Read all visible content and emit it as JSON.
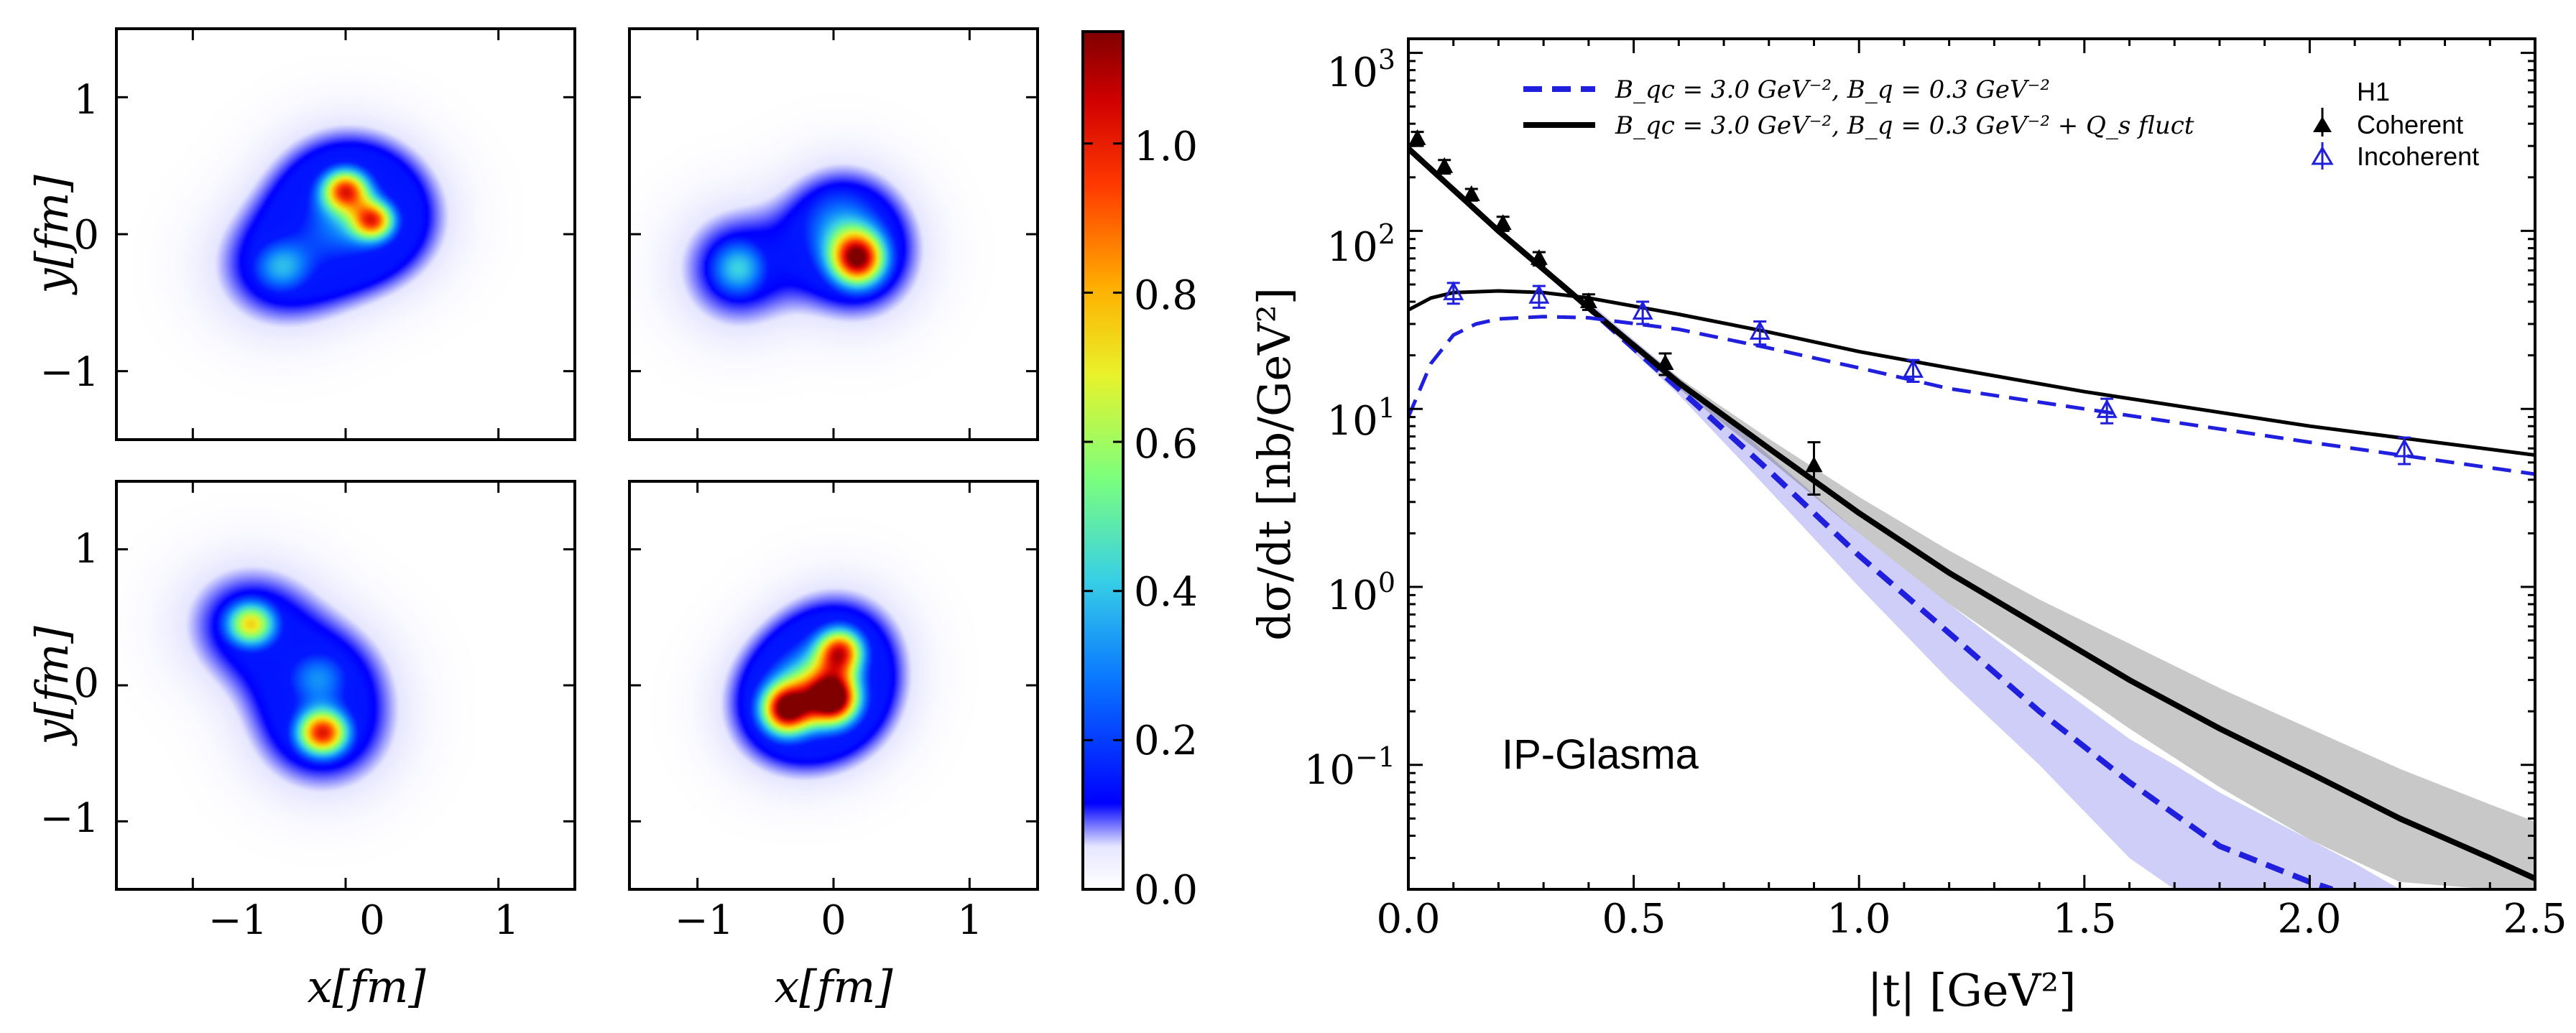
{
  "density_panels": {
    "x_ticks": [
      "−1",
      "0",
      "1"
    ],
    "y_ticks": [
      "1",
      "0",
      "−1"
    ],
    "xlabel": "x[fm]",
    "ylabel": "y[fm]",
    "xlim": [
      -1.5,
      1.5
    ],
    "ylim": [
      -1.5,
      1.5
    ],
    "panels": [
      {
        "blobs": [
          {
            "x": 0.0,
            "y": 0.32,
            "a": 0.85,
            "s": 0.11
          },
          {
            "x": 0.18,
            "y": 0.1,
            "a": 0.8,
            "s": 0.1
          },
          {
            "x": -0.42,
            "y": -0.24,
            "a": 0.35,
            "s": 0.14
          },
          {
            "x": -0.05,
            "y": 0.05,
            "a": 0.25,
            "s": 0.2
          }
        ]
      },
      {
        "blobs": [
          {
            "x": 0.18,
            "y": -0.18,
            "a": 1.0,
            "s": 0.14
          },
          {
            "x": 0.05,
            "y": 0.05,
            "a": 0.3,
            "s": 0.22
          },
          {
            "x": -0.7,
            "y": -0.25,
            "a": 0.4,
            "s": 0.15
          }
        ]
      },
      {
        "blobs": [
          {
            "x": -0.62,
            "y": 0.45,
            "a": 0.7,
            "s": 0.12
          },
          {
            "x": -0.15,
            "y": -0.35,
            "a": 0.95,
            "s": 0.12
          },
          {
            "x": -0.18,
            "y": 0.05,
            "a": 0.3,
            "s": 0.15
          }
        ]
      },
      {
        "blobs": [
          {
            "x": -0.35,
            "y": -0.18,
            "a": 1.0,
            "s": 0.13
          },
          {
            "x": 0.0,
            "y": -0.1,
            "a": 1.0,
            "s": 0.13
          },
          {
            "x": 0.05,
            "y": 0.25,
            "a": 0.85,
            "s": 0.12
          },
          {
            "x": -0.15,
            "y": 0.0,
            "a": 0.5,
            "s": 0.2
          }
        ]
      }
    ]
  },
  "colorbar": {
    "ticks": [
      "0.0",
      "0.2",
      "0.4",
      "0.6",
      "0.8",
      "1.0"
    ],
    "values": [
      0.0,
      0.2,
      0.4,
      0.6,
      0.8,
      1.0
    ],
    "range": [
      0.0,
      1.15
    ]
  },
  "chart_data": {
    "type": "line",
    "xlabel": "|t| [GeV²]",
    "ylabel": "dσ/dt [nb/GeV²]",
    "xlim": [
      0.0,
      2.5
    ],
    "ylim": [
      0.02,
      1200
    ],
    "y_scale": "log",
    "x_ticks": [
      "0.0",
      "0.5",
      "1.0",
      "1.5",
      "2.0",
      "2.5"
    ],
    "y_ticks": [
      {
        "value": 1000,
        "base": "10",
        "exp": "3"
      },
      {
        "value": 100,
        "base": "10",
        "exp": "2"
      },
      {
        "value": 10,
        "base": "10",
        "exp": "1"
      },
      {
        "value": 1,
        "base": "10",
        "exp": "0"
      },
      {
        "value": 0.1,
        "base": "10",
        "exp": "−1"
      }
    ],
    "annotation": "IP-Glasma",
    "legend_left": [
      {
        "label": "B_qc = 3.0 GeV⁻², B_q = 0.3 GeV⁻²",
        "color": "#1f1fdd",
        "style": "dashed"
      },
      {
        "label": "B_qc = 3.0 GeV⁻², B_q = 0.3 GeV⁻² + Q_s fluct",
        "color": "#000000",
        "style": "solid"
      }
    ],
    "legend_right": {
      "title": "H1",
      "items": [
        {
          "label": "Coherent",
          "marker": "filled-triangle",
          "color": "#000000"
        },
        {
          "label": "Incoherent",
          "marker": "open-triangle",
          "color": "#1f1fdd"
        }
      ]
    },
    "series": [
      {
        "name": "B_qc = 3.0 GeV⁻², B_q = 0.3 GeV⁻² (coherent)",
        "color": "#1f1fdd",
        "style": "dashed",
        "width": 8,
        "x": [
          0.0,
          0.2,
          0.4,
          0.6,
          0.8,
          1.0,
          1.2,
          1.4,
          1.6,
          1.8,
          2.0,
          2.05
        ],
        "y": [
          290,
          100,
          37,
          13,
          4.5,
          1.5,
          0.55,
          0.2,
          0.08,
          0.035,
          0.022,
          0.02
        ]
      },
      {
        "name": "B_qc = 3.0 GeV⁻², B_q = 0.3 GeV⁻² + Q_s fluct (coherent)",
        "color": "#000000",
        "style": "solid",
        "width": 8,
        "x": [
          0.0,
          0.2,
          0.4,
          0.6,
          0.8,
          1.0,
          1.2,
          1.4,
          1.6,
          1.8,
          2.0,
          2.2,
          2.4,
          2.5
        ],
        "y": [
          290,
          100,
          37,
          14,
          6,
          2.6,
          1.2,
          0.6,
          0.3,
          0.16,
          0.09,
          0.05,
          0.03,
          0.023
        ]
      },
      {
        "name": "B_qc = 3.0 GeV⁻², B_q = 0.3 GeV⁻² (incoherent)",
        "color": "#1f1fdd",
        "style": "dashed",
        "width": 5,
        "x": [
          0.0,
          0.05,
          0.1,
          0.15,
          0.2,
          0.3,
          0.4,
          0.6,
          0.8,
          1.0,
          1.2,
          1.5,
          2.0,
          2.5
        ],
        "y": [
          9,
          18,
          26,
          30,
          32,
          33,
          32.5,
          28,
          22,
          17,
          13,
          10,
          6.5,
          4.3
        ]
      },
      {
        "name": "B_qc = 3.0 GeV⁻², B_q = 0.3 GeV⁻² + Q_s fluct (incoherent)",
        "color": "#000000",
        "style": "solid",
        "width": 5,
        "x": [
          0.0,
          0.05,
          0.1,
          0.2,
          0.3,
          0.4,
          0.6,
          0.8,
          1.0,
          1.2,
          1.5,
          2.0,
          2.5
        ],
        "y": [
          36,
          42,
          45,
          46,
          45,
          42,
          34,
          27,
          21,
          17,
          12.5,
          8,
          5.5
        ]
      }
    ],
    "bands": [
      {
        "color": "#2222dd",
        "opacity": 0.22,
        "x": [
          0.4,
          0.6,
          0.8,
          1.0,
          1.2,
          1.4,
          1.6,
          1.7,
          1.8,
          2.0,
          2.1,
          2.2
        ],
        "upper": [
          40,
          15,
          5.5,
          2.0,
          0.8,
          0.33,
          0.14,
          0.1,
          0.07,
          0.038,
          0.028,
          0.02
        ],
        "lower": [
          36,
          12,
          3.5,
          1.0,
          0.3,
          0.1,
          0.03,
          0.02,
          0.02,
          0.02,
          0.02,
          0.02
        ]
      },
      {
        "color": "#555555",
        "opacity": 0.32,
        "x": [
          0.5,
          0.6,
          0.8,
          1.0,
          1.2,
          1.4,
          1.6,
          1.8,
          2.0,
          2.2,
          2.4,
          2.5
        ],
        "upper": [
          24,
          15,
          6.8,
          3.2,
          1.6,
          0.85,
          0.48,
          0.27,
          0.16,
          0.095,
          0.06,
          0.048
        ],
        "lower": [
          22,
          13,
          5.2,
          2.0,
          0.8,
          0.36,
          0.16,
          0.075,
          0.038,
          0.022,
          0.02,
          0.02
        ]
      }
    ],
    "coherent_data": {
      "x": [
        0.02,
        0.08,
        0.14,
        0.21,
        0.29,
        0.4,
        0.57,
        0.9
      ],
      "y": [
        330,
        230,
        160,
        110,
        70,
        40,
        18,
        4.8
      ],
      "ylo": [
        300,
        210,
        148,
        100,
        64,
        36,
        15.5,
        3.3
      ],
      "yhi": [
        360,
        250,
        172,
        120,
        76,
        44,
        20.5,
        6.5
      ]
    },
    "incoherent_data": {
      "x": [
        0.1,
        0.29,
        0.52,
        0.78,
        1.12,
        1.55,
        2.21
      ],
      "y": [
        45,
        43,
        35,
        27,
        16.5,
        9.8,
        5.9
      ],
      "ylo": [
        39,
        37,
        30,
        23,
        14.2,
        8.3,
        4.9
      ],
      "yhi": [
        51,
        49,
        40,
        31,
        18.8,
        11.4,
        6.9
      ]
    }
  }
}
